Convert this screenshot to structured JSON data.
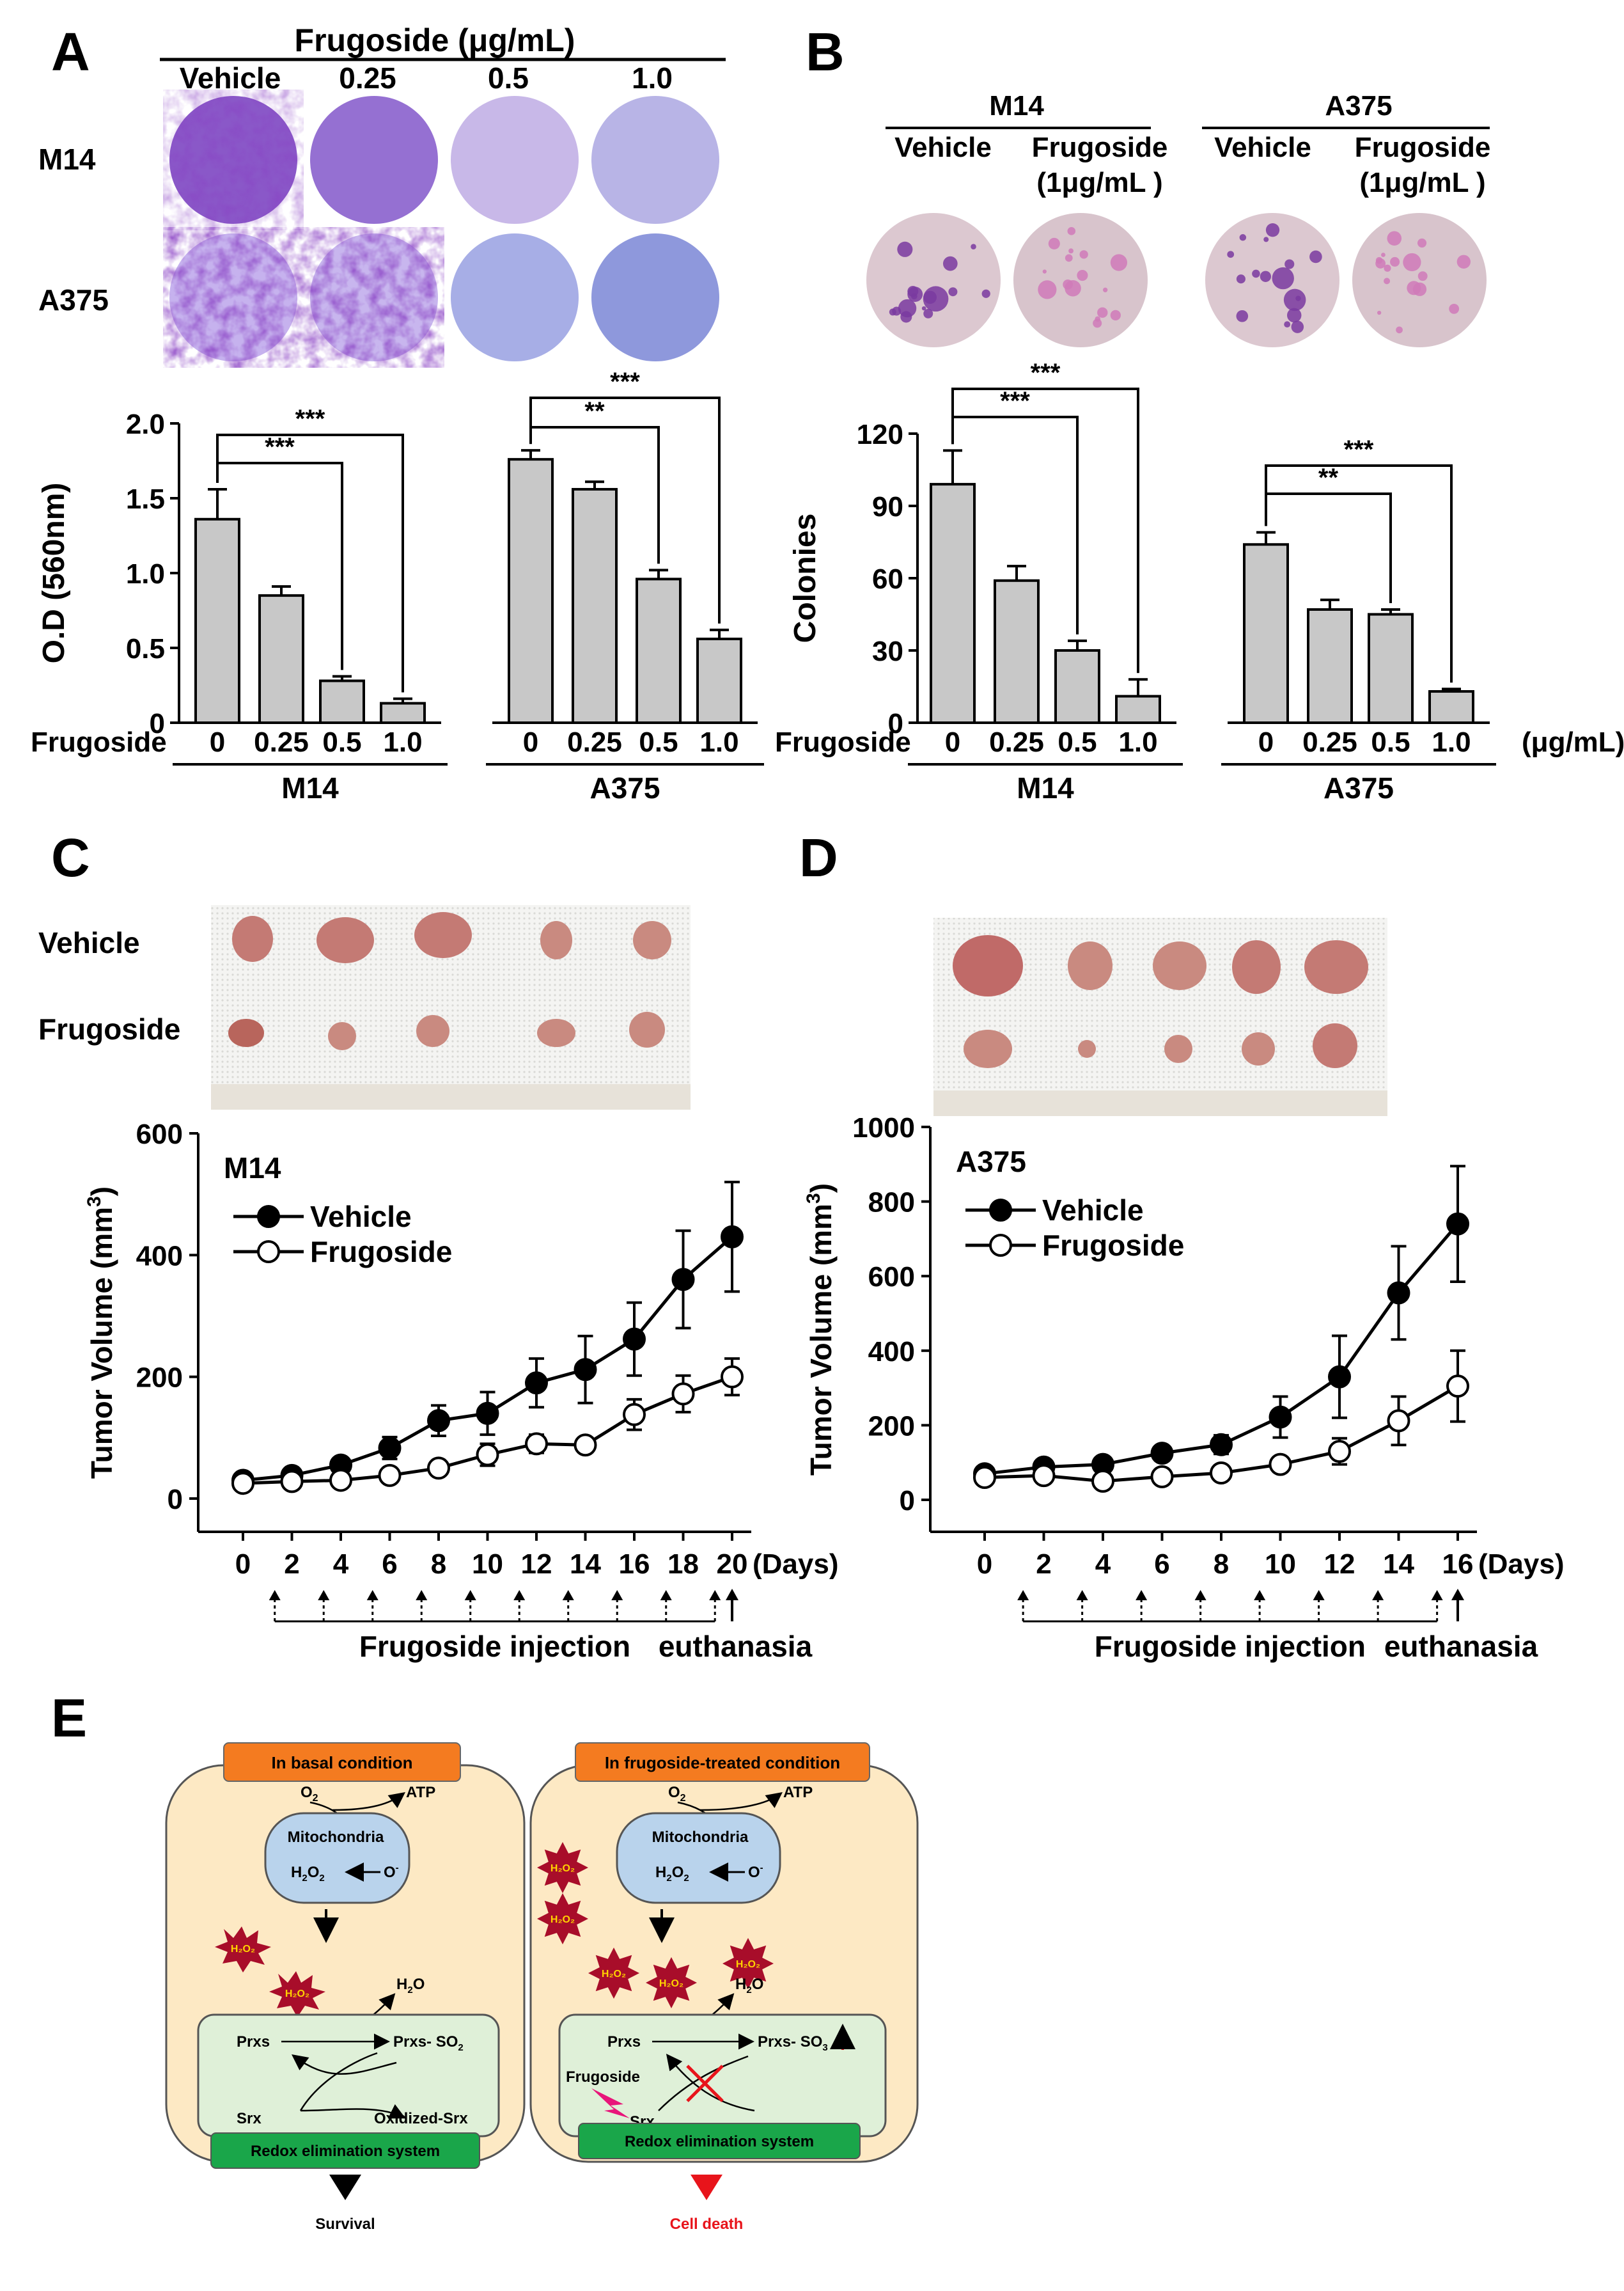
{
  "panelA": {
    "letter": "A",
    "header": "Frugoside (μg/mL)",
    "col_labels": [
      "Vehicle",
      "0.25",
      "0.5",
      "1.0"
    ],
    "row_labels": [
      "M14",
      "A375"
    ]
  },
  "panelB": {
    "letter": "B",
    "groups": [
      {
        "name": "M14",
        "cols": [
          "Vehicle",
          "Frugoside",
          "(1μg/mL )"
        ]
      },
      {
        "name": "A375",
        "cols": [
          "Vehicle",
          "Frugoside",
          "(1μg/mL )"
        ]
      }
    ]
  },
  "panelC": {
    "letter": "C",
    "photo_rows": [
      "Vehicle",
      "Frugoside"
    ]
  },
  "panelD": {
    "letter": "D"
  },
  "panelE": {
    "letter": "E",
    "left": {
      "title": "In basal condition",
      "o2": "O",
      "o2_sub": "2",
      "atp": "ATP",
      "mito": "Mitochondria",
      "h2o2": "H",
      "o_minus": "O",
      "h2o": "H",
      "prxs": "Prxs",
      "prxs_so2": "Prxs- SO",
      "prxs_so2_sub": "2",
      "srx": "Srx",
      "oxidized": "Oxidized-Srx",
      "redox": "Redox elimination system",
      "outcome": "Survival"
    },
    "right": {
      "title": "In frugoside-treated condition",
      "prxs_so3": "Prxs- SO",
      "prxs_so3_sub": "3",
      "frugoside": "Frugoside",
      "redox": "Redox elimination system",
      "outcome": "Cell death"
    }
  },
  "colors": {
    "bar": "#c8c8c8",
    "orange": "#f47b20",
    "green": "#1aa64a",
    "cell": "#fde9c4",
    "mito": "#b9d3ec",
    "inner": "#dff0d8",
    "burst": "#a80d2a",
    "red": "#e8141b"
  },
  "chart_data": [
    {
      "type": "bar",
      "id": "A",
      "ylabel": "O.D (560nm)",
      "xlabel": "Frugoside",
      "ylim": [
        0,
        2.0
      ],
      "yticks": [
        "0",
        "0.5",
        "1.0",
        "1.5",
        "2.0"
      ],
      "groups": [
        {
          "name": "M14",
          "categories": [
            "0",
            "0.25",
            "0.5",
            "1.0"
          ],
          "values": [
            1.36,
            0.85,
            0.28,
            0.13
          ],
          "errors": [
            0.2,
            0.06,
            0.03,
            0.03
          ]
        },
        {
          "name": "A375",
          "categories": [
            "0",
            "0.25",
            "0.5",
            "1.0"
          ],
          "values": [
            1.76,
            1.56,
            0.96,
            0.56
          ],
          "errors": [
            0.06,
            0.05,
            0.06,
            0.06
          ]
        }
      ],
      "significance": [
        {
          "group": 0,
          "from": 0,
          "to": 2,
          "label": "***"
        },
        {
          "group": 0,
          "from": 0,
          "to": 3,
          "label": "***"
        },
        {
          "group": 1,
          "from": 0,
          "to": 2,
          "label": "**"
        },
        {
          "group": 1,
          "from": 0,
          "to": 3,
          "label": "***"
        }
      ]
    },
    {
      "type": "bar",
      "id": "B",
      "ylabel": "Colonies",
      "xlabel": "Frugoside",
      "unit": "(μg/mL)",
      "ylim": [
        0,
        120
      ],
      "yticks": [
        "0",
        "30",
        "60",
        "90",
        "120"
      ],
      "groups": [
        {
          "name": "M14",
          "categories": [
            "0",
            "0.25",
            "0.5",
            "1.0"
          ],
          "values": [
            99,
            59,
            30,
            11
          ],
          "errors": [
            14,
            6,
            4,
            7
          ]
        },
        {
          "name": "A375",
          "categories": [
            "0",
            "0.25",
            "0.5",
            "1.0"
          ],
          "values": [
            74,
            47,
            45,
            13
          ],
          "errors": [
            5,
            4,
            2,
            1
          ]
        }
      ],
      "significance": [
        {
          "group": 0,
          "from": 0,
          "to": 2,
          "label": "***"
        },
        {
          "group": 0,
          "from": 0,
          "to": 3,
          "label": "***"
        },
        {
          "group": 1,
          "from": 0,
          "to": 2,
          "label": "**"
        },
        {
          "group": 1,
          "from": 0,
          "to": 3,
          "label": "***"
        }
      ]
    },
    {
      "type": "line",
      "id": "C",
      "title": "M14",
      "ylabel": "Tumor Volume (mm",
      "ylabel_sup": "3",
      "ylabel_end": ")",
      "xunit": "(Days)",
      "ylim": [
        0,
        600
      ],
      "yticks": [
        "0",
        "200",
        "400",
        "600"
      ],
      "x": [
        0,
        2,
        4,
        6,
        8,
        10,
        12,
        14,
        16,
        18,
        20
      ],
      "series": [
        {
          "name": "Vehicle",
          "values": [
            30,
            38,
            55,
            83,
            128,
            140,
            190,
            212,
            262,
            360,
            430
          ],
          "errors": [
            6,
            6,
            12,
            18,
            25,
            35,
            40,
            55,
            60,
            80,
            90
          ]
        },
        {
          "name": "Frugoside",
          "values": [
            25,
            28,
            30,
            38,
            50,
            72,
            90,
            88,
            138,
            172,
            200
          ],
          "errors": [
            5,
            5,
            6,
            10,
            10,
            18,
            15,
            12,
            25,
            30,
            30
          ]
        }
      ],
      "injection_label": "Frugoside injection",
      "end_label": "euthanasia"
    },
    {
      "type": "line",
      "id": "D",
      "title": "A375",
      "ylabel": "Tumor Volume (mm",
      "ylabel_sup": "3",
      "ylabel_end": ")",
      "xunit": "(Days)",
      "ylim": [
        0,
        1000
      ],
      "yticks": [
        "0",
        "200",
        "400",
        "600",
        "800",
        "1000"
      ],
      "x": [
        0,
        2,
        4,
        6,
        8,
        10,
        12,
        14,
        16
      ],
      "series": [
        {
          "name": "Vehicle",
          "values": [
            70,
            88,
            95,
            125,
            148,
            222,
            330,
            555,
            740
          ],
          "errors": [
            8,
            10,
            12,
            15,
            25,
            55,
            110,
            125,
            155
          ]
        },
        {
          "name": "Frugoside",
          "values": [
            60,
            65,
            50,
            62,
            72,
            95,
            130,
            212,
            305
          ],
          "errors": [
            8,
            8,
            8,
            10,
            12,
            20,
            35,
            65,
            95
          ]
        }
      ],
      "injection_label": "Frugoside injection",
      "end_label": "euthanasia"
    }
  ]
}
